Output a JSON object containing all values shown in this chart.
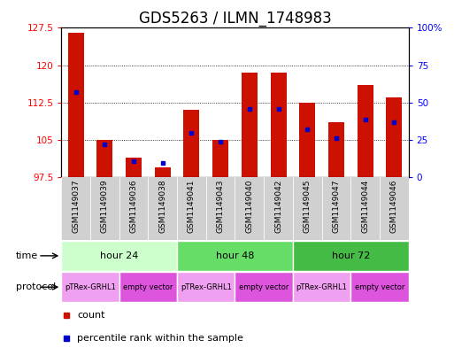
{
  "title": "GDS5263 / ILMN_1748983",
  "samples": [
    "GSM1149037",
    "GSM1149039",
    "GSM1149036",
    "GSM1149038",
    "GSM1149041",
    "GSM1149043",
    "GSM1149040",
    "GSM1149042",
    "GSM1149045",
    "GSM1149047",
    "GSM1149044",
    "GSM1149046"
  ],
  "count_values": [
    126.5,
    105.0,
    101.5,
    99.5,
    111.0,
    105.0,
    118.5,
    118.5,
    112.5,
    108.5,
    116.0,
    113.5
  ],
  "percentile_values": [
    57,
    22,
    11,
    10,
    30,
    24,
    46,
    46,
    32,
    26,
    39,
    37
  ],
  "ymin": 97.5,
  "ymax": 127.5,
  "yticks": [
    97.5,
    105.0,
    112.5,
    120.0,
    127.5
  ],
  "ytick_labels": [
    "97.5",
    "105",
    "112.5",
    "120",
    "127.5"
  ],
  "right_yticks": [
    0,
    25,
    50,
    75,
    100
  ],
  "right_ytick_labels": [
    "0",
    "25",
    "50",
    "75",
    "100%"
  ],
  "time_groups": [
    {
      "label": "hour 24",
      "start": 0,
      "end": 4,
      "color": "#ccffcc"
    },
    {
      "label": "hour 48",
      "start": 4,
      "end": 8,
      "color": "#66dd66"
    },
    {
      "label": "hour 72",
      "start": 8,
      "end": 12,
      "color": "#44bb44"
    }
  ],
  "protocol_groups": [
    {
      "label": "pTRex-GRHL1",
      "start": 0,
      "end": 2,
      "color": "#f0a0f0"
    },
    {
      "label": "empty vector",
      "start": 2,
      "end": 4,
      "color": "#dd55dd"
    },
    {
      "label": "pTRex-GRHL1",
      "start": 4,
      "end": 6,
      "color": "#f0a0f0"
    },
    {
      "label": "empty vector",
      "start": 6,
      "end": 8,
      "color": "#dd55dd"
    },
    {
      "label": "pTRex-GRHL1",
      "start": 8,
      "end": 10,
      "color": "#f0a0f0"
    },
    {
      "label": "empty vector",
      "start": 10,
      "end": 12,
      "color": "#dd55dd"
    }
  ],
  "bar_color": "#cc1100",
  "percentile_color": "#0000cc",
  "bar_width": 0.55,
  "title_fontsize": 12,
  "tick_fontsize": 7.5,
  "sample_fontsize": 6.5,
  "row_label_fontsize": 8,
  "legend_fontsize": 8
}
